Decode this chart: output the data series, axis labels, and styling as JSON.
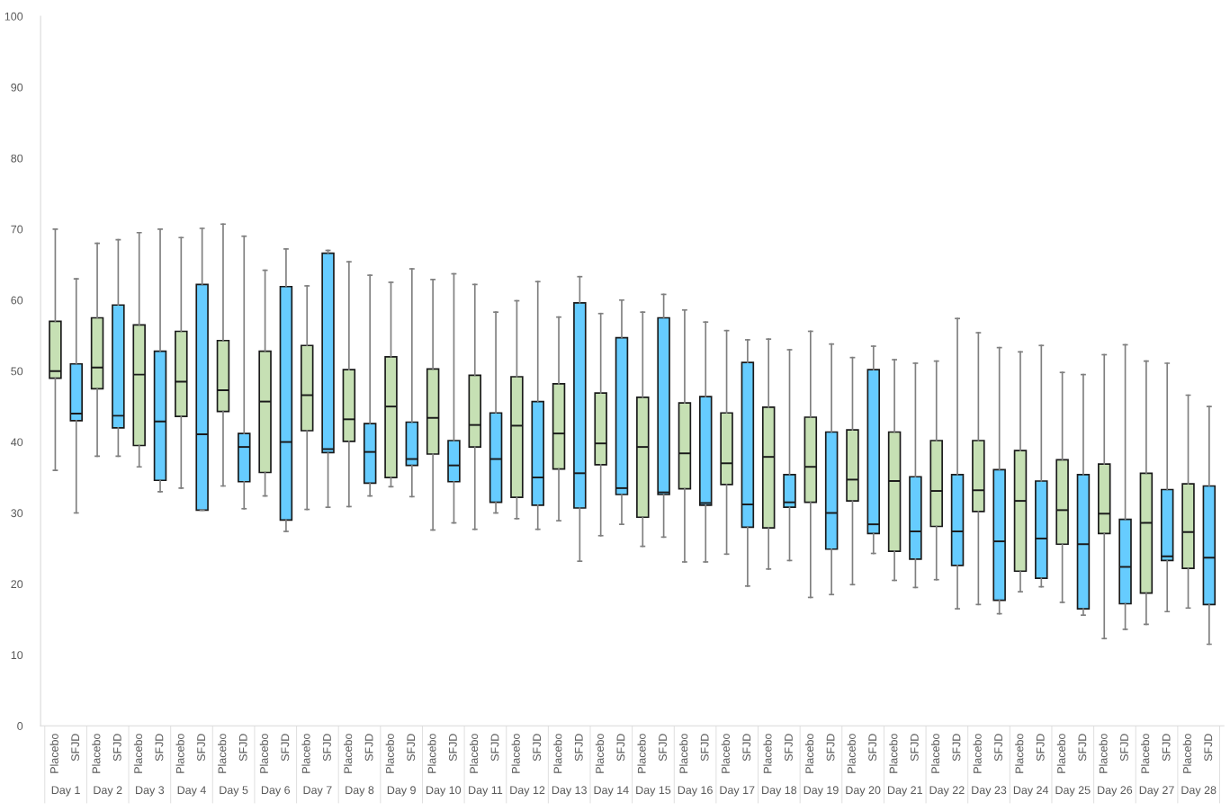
{
  "chart_data": {
    "type": "box",
    "categories": [
      "Placebo",
      "SFJD",
      "Placebo",
      "SFJD",
      "Placebo",
      "SFJD",
      "Placebo",
      "SFJD",
      "Placebo",
      "SFJD",
      "Placebo",
      "SFJD",
      "Placebo",
      "SFJD",
      "Placebo",
      "SFJD",
      "Placebo",
      "SFJD",
      "Placebo",
      "SFJD",
      "Placebo",
      "SFJD",
      "Placebo",
      "SFJD",
      "Placebo",
      "SFJD",
      "Placebo",
      "SFJD",
      "Placebo",
      "SFJD",
      "Placebo",
      "SFJD",
      "Placebo",
      "SFJD",
      "Placebo",
      "SFJD",
      "Placebo",
      "SFJD",
      "Placebo",
      "SFJD",
      "Placebo",
      "SFJD",
      "Placebo",
      "SFJD",
      "Placebo",
      "SFJD",
      "Placebo",
      "SFJD",
      "Placebo",
      "SFJD",
      "Placebo",
      "SFJD",
      "Placebo",
      "SFJD",
      "Placebo",
      "SFJD"
    ],
    "colors": [
      "#c6e0b4",
      "#66ccff",
      "#c6e0b4",
      "#66ccff",
      "#c6e0b4",
      "#66ccff",
      "#c6e0b4",
      "#66ccff",
      "#c6e0b4",
      "#66ccff",
      "#c6e0b4",
      "#66ccff",
      "#c6e0b4",
      "#66ccff",
      "#c6e0b4",
      "#66ccff",
      "#c6e0b4",
      "#66ccff",
      "#c6e0b4",
      "#66ccff",
      "#c6e0b4",
      "#66ccff",
      "#c6e0b4",
      "#66ccff",
      "#c6e0b4",
      "#66ccff",
      "#c6e0b4",
      "#66ccff",
      "#c6e0b4",
      "#66ccff",
      "#c6e0b4",
      "#66ccff",
      "#c6e0b4",
      "#66ccff",
      "#c6e0b4",
      "#66ccff",
      "#c6e0b4",
      "#66ccff",
      "#c6e0b4",
      "#66ccff",
      "#c6e0b4",
      "#66ccff",
      "#c6e0b4",
      "#66ccff",
      "#c6e0b4",
      "#66ccff",
      "#c6e0b4",
      "#66ccff",
      "#c6e0b4",
      "#66ccff",
      "#c6e0b4",
      "#66ccff",
      "#c6e0b4",
      "#66ccff",
      "#c6e0b4",
      "#66ccff"
    ],
    "boxes": [
      {
        "low": 36,
        "q1": 49,
        "median": 50,
        "q3": 57,
        "high": 70
      },
      {
        "low": 30,
        "q1": 43,
        "median": 44,
        "q3": 51,
        "high": 63
      },
      {
        "low": 38,
        "q1": 47.5,
        "median": 50.5,
        "q3": 57.5,
        "high": 68
      },
      {
        "low": 38,
        "q1": 42,
        "median": 43.7,
        "q3": 59.3,
        "high": 68.5
      },
      {
        "low": 36.5,
        "q1": 39.5,
        "median": 49.5,
        "q3": 56.5,
        "high": 69.5
      },
      {
        "low": 33,
        "q1": 34.6,
        "median": 42.9,
        "q3": 52.8,
        "high": 70
      },
      {
        "low": 33.5,
        "q1": 43.6,
        "median": 48.5,
        "q3": 55.6,
        "high": 68.8
      },
      {
        "low": 30.4,
        "q1": 30.4,
        "median": 41.1,
        "q3": 62.2,
        "high": 70.1
      },
      {
        "low": 33.8,
        "q1": 44.3,
        "median": 47.3,
        "q3": 54.3,
        "high": 70.7
      },
      {
        "low": 30.6,
        "q1": 34.4,
        "median": 39.3,
        "q3": 41.2,
        "high": 69
      },
      {
        "low": 32.4,
        "q1": 35.7,
        "median": 45.7,
        "q3": 52.8,
        "high": 64.2
      },
      {
        "low": 27.4,
        "q1": 29,
        "median": 40,
        "q3": 61.9,
        "high": 67.2
      },
      {
        "low": 30.5,
        "q1": 41.6,
        "median": 46.6,
        "q3": 53.6,
        "high": 62
      },
      {
        "low": 30.8,
        "q1": 38.5,
        "median": 39,
        "q3": 66.6,
        "high": 67
      },
      {
        "low": 30.9,
        "q1": 40.1,
        "median": 43.2,
        "q3": 50.2,
        "high": 65.4
      },
      {
        "low": 32.4,
        "q1": 34.2,
        "median": 38.6,
        "q3": 42.6,
        "high": 63.5
      },
      {
        "low": 33.7,
        "q1": 35,
        "median": 45,
        "q3": 52,
        "high": 62.5
      },
      {
        "low": 32.3,
        "q1": 36.7,
        "median": 37.6,
        "q3": 42.8,
        "high": 64.4
      },
      {
        "low": 27.6,
        "q1": 38.3,
        "median": 43.4,
        "q3": 50.3,
        "high": 62.9
      },
      {
        "low": 28.6,
        "q1": 34.4,
        "median": 36.7,
        "q3": 40.2,
        "high": 63.7
      },
      {
        "low": 27.7,
        "q1": 39.3,
        "median": 42.4,
        "q3": 49.4,
        "high": 62.2
      },
      {
        "low": 30,
        "q1": 31.5,
        "median": 37.6,
        "q3": 44.1,
        "high": 58.3
      },
      {
        "low": 29.2,
        "q1": 32.2,
        "median": 42.3,
        "q3": 49.2,
        "high": 59.9
      },
      {
        "low": 27.7,
        "q1": 31.1,
        "median": 35,
        "q3": 45.7,
        "high": 62.6
      },
      {
        "low": 28.9,
        "q1": 36.2,
        "median": 41.2,
        "q3": 48.2,
        "high": 57.6
      },
      {
        "low": 23.2,
        "q1": 30.7,
        "median": 35.6,
        "q3": 59.6,
        "high": 63.3
      },
      {
        "low": 26.8,
        "q1": 36.8,
        "median": 39.8,
        "q3": 46.9,
        "high": 58.1
      },
      {
        "low": 28.4,
        "q1": 32.6,
        "median": 33.5,
        "q3": 54.7,
        "high": 60
      },
      {
        "low": 25.3,
        "q1": 29.4,
        "median": 39.3,
        "q3": 46.3,
        "high": 58.3
      },
      {
        "low": 26.6,
        "q1": 32.6,
        "median": 32.9,
        "q3": 57.5,
        "high": 60.8
      },
      {
        "low": 23.1,
        "q1": 33.4,
        "median": 38.4,
        "q3": 45.5,
        "high": 58.6
      },
      {
        "low": 23.1,
        "q1": 31.1,
        "median": 31.4,
        "q3": 46.4,
        "high": 56.9
      },
      {
        "low": 24.2,
        "q1": 34,
        "median": 37,
        "q3": 44.1,
        "high": 55.7
      },
      {
        "low": 19.7,
        "q1": 28,
        "median": 31.2,
        "q3": 51.2,
        "high": 54.4
      },
      {
        "low": 22.1,
        "q1": 27.9,
        "median": 37.9,
        "q3": 44.9,
        "high": 54.5
      },
      {
        "low": 23.3,
        "q1": 30.8,
        "median": 31.5,
        "q3": 35.4,
        "high": 53
      },
      {
        "low": 18.1,
        "q1": 31.5,
        "median": 36.5,
        "q3": 43.5,
        "high": 55.6
      },
      {
        "low": 18.5,
        "q1": 24.9,
        "median": 30,
        "q3": 41.4,
        "high": 53.8
      },
      {
        "low": 19.9,
        "q1": 31.7,
        "median": 34.7,
        "q3": 41.7,
        "high": 51.9
      },
      {
        "low": 24.3,
        "q1": 27.1,
        "median": 28.4,
        "q3": 50.2,
        "high": 53.5
      },
      {
        "low": 20.5,
        "q1": 24.6,
        "median": 34.5,
        "q3": 41.4,
        "high": 51.6
      },
      {
        "low": 19.5,
        "q1": 23.5,
        "median": 27.4,
        "q3": 35.1,
        "high": 51.1
      },
      {
        "low": 20.6,
        "q1": 28.1,
        "median": 33.1,
        "q3": 40.2,
        "high": 51.4
      },
      {
        "low": 16.5,
        "q1": 22.6,
        "median": 27.4,
        "q3": 35.4,
        "high": 57.4
      },
      {
        "low": 17.1,
        "q1": 30.2,
        "median": 33.2,
        "q3": 40.2,
        "high": 55.4
      },
      {
        "low": 15.8,
        "q1": 17.7,
        "median": 26,
        "q3": 36.1,
        "high": 53.3
      },
      {
        "low": 18.9,
        "q1": 21.8,
        "median": 31.7,
        "q3": 38.8,
        "high": 52.7
      },
      {
        "low": 19.6,
        "q1": 20.8,
        "median": 26.4,
        "q3": 34.5,
        "high": 53.6
      },
      {
        "low": 17.4,
        "q1": 25.6,
        "median": 30.4,
        "q3": 37.5,
        "high": 49.8
      },
      {
        "low": 15.6,
        "q1": 16.5,
        "median": 25.6,
        "q3": 35.4,
        "high": 49.5
      },
      {
        "low": 12.3,
        "q1": 27.1,
        "median": 29.9,
        "q3": 36.9,
        "high": 52.3
      },
      {
        "low": 13.6,
        "q1": 17.2,
        "median": 22.4,
        "q3": 29.1,
        "high": 53.7
      },
      {
        "low": 14.3,
        "q1": 18.7,
        "median": 28.6,
        "q3": 35.6,
        "high": 51.4
      },
      {
        "low": 16.1,
        "q1": 23.3,
        "median": 23.9,
        "q3": 33.3,
        "high": 51.1
      },
      {
        "low": 16.6,
        "q1": 22.2,
        "median": 27.3,
        "q3": 34.1,
        "high": 46.6
      },
      {
        "low": 11.5,
        "q1": 17.1,
        "median": 23.7,
        "q3": 33.8,
        "high": 45
      }
    ],
    "annotations": [
      "Day 1",
      "Day 2",
      "Day 3",
      "Day 4",
      "Day 5",
      "Day 6",
      "Day 7",
      "Day 8",
      "Day 9",
      "Day 10",
      "Day 11",
      "Day 12",
      "Day 13",
      "Day 14",
      "Day 15",
      "Day 16",
      "Day 17",
      "Day 18",
      "Day 19",
      "Day 20",
      "Day 21",
      "Day 22",
      "Day 23",
      "Day 24",
      "Day 25",
      "Day 26",
      "Day 27",
      "Day 28"
    ],
    "ylim": [
      0,
      100
    ],
    "yticks": [
      0,
      10,
      20,
      30,
      40,
      50,
      60,
      70,
      80,
      90,
      100
    ],
    "grid": false
  }
}
